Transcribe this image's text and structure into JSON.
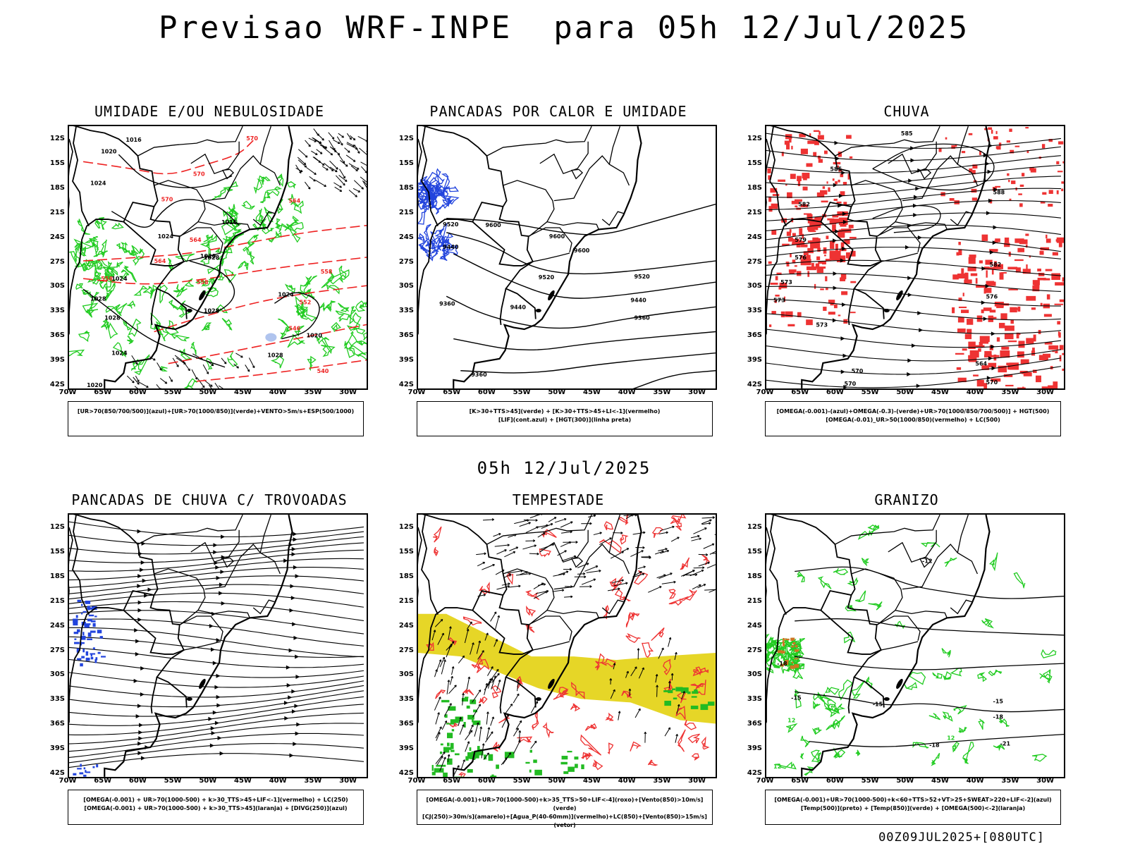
{
  "title": "Previsao WRF-INPE  para 05h 12/Jul/2025",
  "subtitle": "05h 12/Jul/2025",
  "footer": "00Z09JUL2025+[080UTC]",
  "lat_labels": [
    "12S",
    "15S",
    "18S",
    "21S",
    "24S",
    "27S",
    "30S",
    "33S",
    "36S",
    "39S",
    "42S"
  ],
  "lon_labels": [
    "70W",
    "65W",
    "60W",
    "55W",
    "50W",
    "45W",
    "40W",
    "35W",
    "30W"
  ],
  "panels": [
    {
      "title": "UMIDADE E/OU NEBULOSIDADE",
      "legend": [
        "[UR>70(850/700/500)](azul)+[UR>70(1000/850)](verde)+VENTO>5m/s+ESP(500/1000)"
      ],
      "labels": [
        {
          "t": "1016",
          "c": "#000"
        },
        {
          "t": "1020",
          "c": "#000"
        },
        {
          "t": "1024",
          "c": "#000"
        },
        {
          "t": "1028",
          "c": "#000"
        },
        {
          "t": "1016",
          "c": "#000"
        },
        {
          "t": "1020",
          "c": "#000"
        },
        {
          "t": "1024",
          "c": "#000"
        },
        {
          "t": "1028",
          "c": "#000"
        },
        {
          "t": "1024",
          "c": "#000"
        },
        {
          "t": "1020",
          "c": "#000"
        },
        {
          "t": "1024",
          "c": "#000"
        },
        {
          "t": "1028",
          "c": "#000"
        },
        {
          "t": "1028",
          "c": "#000"
        },
        {
          "t": "1028",
          "c": "#000"
        },
        {
          "t": "1024",
          "c": "#000"
        },
        {
          "t": "1020",
          "c": "#000"
        },
        {
          "t": "570",
          "c": "#ee2222"
        },
        {
          "t": "570",
          "c": "#ee2222"
        },
        {
          "t": "570",
          "c": "#ee2222"
        },
        {
          "t": "564",
          "c": "#ee2222"
        },
        {
          "t": "564",
          "c": "#ee2222"
        },
        {
          "t": "558",
          "c": "#ee2222"
        },
        {
          "t": "558",
          "c": "#ee2222"
        },
        {
          "t": "552",
          "c": "#ee2222"
        },
        {
          "t": "546",
          "c": "#ee2222"
        },
        {
          "t": "540",
          "c": "#ee2222"
        },
        {
          "t": "558",
          "c": "#ee2222"
        },
        {
          "t": "564",
          "c": "#ee2222"
        }
      ]
    },
    {
      "title": "PANCADAS POR CALOR E UMIDADE",
      "legend": [
        "[K>30+TTS>45](verde) + [K>30+TTS>45+LI<-1](vermelho)",
        "[LIF](cont.azul) + [HGT(300)](linha preta)"
      ],
      "labels": [
        {
          "t": "9520",
          "c": "#000"
        },
        {
          "t": "9600",
          "c": "#000"
        },
        {
          "t": "9440",
          "c": "#000"
        },
        {
          "t": "9600",
          "c": "#000"
        },
        {
          "t": "9600",
          "c": "#000"
        },
        {
          "t": "9520",
          "c": "#000"
        },
        {
          "t": "9520",
          "c": "#000"
        },
        {
          "t": "9440",
          "c": "#000"
        },
        {
          "t": "9440",
          "c": "#000"
        },
        {
          "t": "9360",
          "c": "#000"
        },
        {
          "t": "9360",
          "c": "#000"
        },
        {
          "t": "9360",
          "c": "#000"
        }
      ]
    },
    {
      "title": "CHUVA",
      "legend": [
        "[OMEGA(-0.001)-(azul)+OMEGA(-0.3)-(verde)+UR>70(1000/850/700/500)] + HGT(500)",
        "[OMEGA(-0.01)_UR>50(1000/850)(vermelho) + LC(500)"
      ],
      "labels": [
        {
          "t": "585",
          "c": "#000"
        },
        {
          "t": "585",
          "c": "#000"
        },
        {
          "t": "588",
          "c": "#000"
        },
        {
          "t": "582",
          "c": "#000"
        },
        {
          "t": "582",
          "c": "#000"
        },
        {
          "t": "579",
          "c": "#000"
        },
        {
          "t": "576",
          "c": "#000"
        },
        {
          "t": "576",
          "c": "#000"
        },
        {
          "t": "573",
          "c": "#000"
        },
        {
          "t": "573",
          "c": "#000"
        },
        {
          "t": "570",
          "c": "#000"
        },
        {
          "t": "570",
          "c": "#000"
        },
        {
          "t": "564",
          "c": "#000"
        },
        {
          "t": "573",
          "c": "#000"
        },
        {
          "t": "570",
          "c": "#000"
        }
      ]
    },
    {
      "title": "PANCADAS DE CHUVA C/ TROVOADAS",
      "legend": [
        "[OMEGA(-0.001) + UR>70(1000-500) + k>30_TTS>45+LIF<-1](vermelho) + LC(250)",
        "[OMEGA(-0.001) + UR>70(1000-500) + k>30_TTS>45](laranja) + [DIVG(250)](azul)"
      ],
      "labels": []
    },
    {
      "title": "TEMPESTADE",
      "legend": [
        "[OMEGA(-0.001)+UR>70(1000-500)+k>35_TTS>50+LIF<-4](roxo)+[Vento(850)>10m/s](verde)",
        "[CJ(250)>30m/s](amarelo)+[Agua_P(40-60mm)](vermelho)+LC(850)+[Vento(850)>15m/s](vetor)"
      ],
      "labels": []
    },
    {
      "title": "GRANIZO",
      "legend": [
        "[OMEGA(-0.001)+UR>70(1000-500)+k<60+TTS>52+VT>25+SWEAT>220+LIF<-2](azul)",
        "[Temp(500)](preto) + [Temp(850)](verde) + [OMEGA(500)<-2](laranja)"
      ],
      "labels": [
        {
          "t": "-15",
          "c": "#000"
        },
        {
          "t": "-15",
          "c": "#000"
        },
        {
          "t": "-18",
          "c": "#000"
        },
        {
          "t": "-18",
          "c": "#000"
        },
        {
          "t": "-15",
          "c": "#000"
        },
        {
          "t": "-18",
          "c": "#000"
        },
        {
          "t": "-21",
          "c": "#000"
        },
        {
          "t": "-12",
          "c": "#000"
        },
        {
          "t": "12",
          "c": "#22cc22"
        },
        {
          "t": "12",
          "c": "#22cc22"
        },
        {
          "t": "12",
          "c": "#22cc22"
        }
      ]
    }
  ]
}
